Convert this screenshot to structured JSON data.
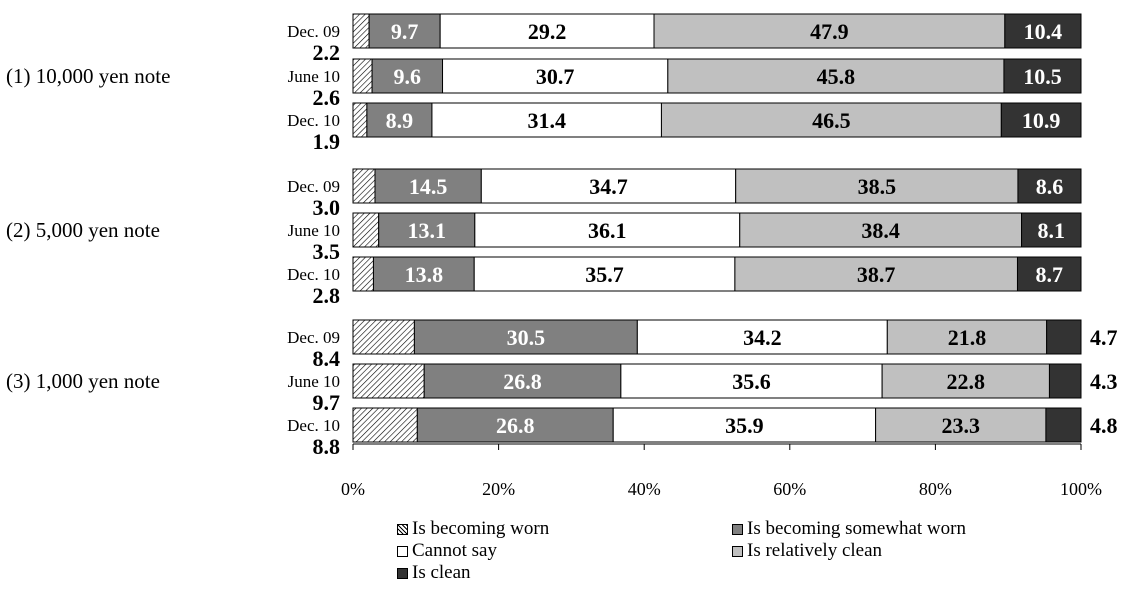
{
  "colors": {
    "worn": "hatch",
    "somewhat_worn": "#808080",
    "cannot_say": "#ffffff",
    "relatively_clean": "#c0c0c0",
    "clean": "#333333"
  },
  "chart_data": {
    "type": "bar",
    "orientation": "horizontal",
    "stacked": true,
    "percent": true,
    "xlim": [
      0,
      100
    ],
    "x_ticks": [
      "0%",
      "20%",
      "40%",
      "60%",
      "80%",
      "100%"
    ],
    "groups": [
      {
        "label": "(1) 10,000 yen note",
        "rows": [
          {
            "label": "Dec. 09",
            "values": [
              2.2,
              9.7,
              29.2,
              47.9,
              10.4
            ]
          },
          {
            "label": "June 10",
            "values": [
              2.6,
              9.6,
              30.7,
              45.8,
              10.5
            ]
          },
          {
            "label": "Dec. 10",
            "values": [
              1.9,
              8.9,
              31.4,
              46.5,
              10.9
            ]
          }
        ]
      },
      {
        "label": "(2) 5,000 yen note",
        "rows": [
          {
            "label": "Dec. 09",
            "values": [
              3.0,
              14.5,
              34.7,
              38.5,
              8.6
            ]
          },
          {
            "label": "June 10",
            "values": [
              3.5,
              13.1,
              36.1,
              38.4,
              8.1
            ]
          },
          {
            "label": "Dec. 10",
            "values": [
              2.8,
              13.8,
              35.7,
              38.7,
              8.7
            ]
          }
        ]
      },
      {
        "label": "(3) 1,000 yen note",
        "rows": [
          {
            "label": "Dec. 09",
            "values": [
              8.4,
              30.5,
              34.2,
              21.8,
              4.7
            ]
          },
          {
            "label": "June 10",
            "values": [
              9.7,
              26.8,
              35.6,
              22.8,
              4.3
            ]
          },
          {
            "label": "Dec. 10",
            "values": [
              8.8,
              26.8,
              35.9,
              23.3,
              4.8
            ]
          }
        ]
      }
    ],
    "series": [
      {
        "name": "Is becoming worn",
        "key": "worn"
      },
      {
        "name": "Is becoming somewhat worn",
        "key": "somewhat_worn"
      },
      {
        "name": "Cannot say",
        "key": "cannot_say"
      },
      {
        "name": "Is relatively clean",
        "key": "relatively_clean"
      },
      {
        "name": "Is clean",
        "key": "clean"
      }
    ],
    "legend_position": "bottom"
  }
}
